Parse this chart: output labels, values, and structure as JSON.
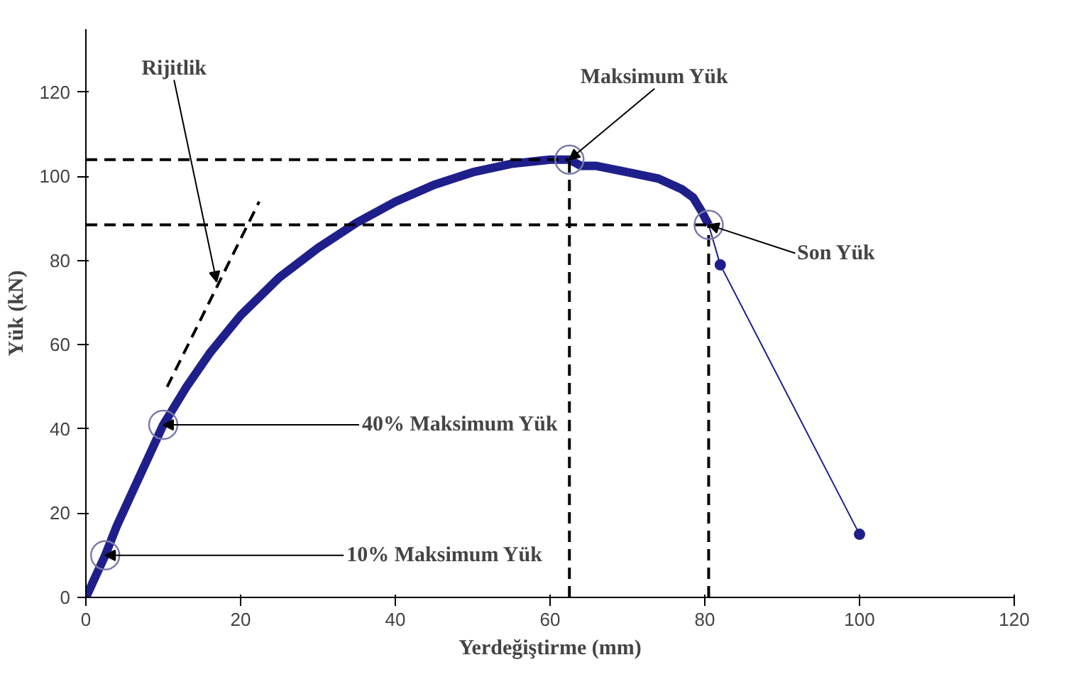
{
  "chart_data": {
    "type": "line",
    "xlabel": "Yerdeğiştirme (mm)",
    "ylabel": "Yük (kN)",
    "xlim": [
      0,
      120
    ],
    "ylim": [
      0,
      135
    ],
    "xticks": [
      0,
      20,
      40,
      60,
      80,
      100,
      120
    ],
    "yticks": [
      0,
      20,
      40,
      60,
      80,
      100,
      120
    ],
    "grid": false,
    "series": [
      {
        "color": "#1f1f8c",
        "x": [
          0,
          0.5,
          1,
          2,
          2.5,
          4,
          6,
          8,
          10,
          13,
          16,
          20,
          25,
          30,
          35,
          40,
          45,
          50,
          55,
          60,
          62.5,
          64,
          66,
          70,
          74,
          77,
          78.5,
          79.5,
          80.5
        ],
        "values": [
          0,
          2,
          4,
          8,
          10,
          17,
          25,
          33,
          41,
          50,
          58,
          67,
          76,
          83,
          89,
          94,
          98,
          101,
          103,
          104,
          104,
          102.5,
          102.5,
          101,
          99.5,
          97,
          95,
          92,
          88.5
        ],
        "marker": "none",
        "line_style": "solid"
      },
      {
        "color": "#1f1f8c",
        "x": [
          80.5,
          82,
          100
        ],
        "values": [
          88.5,
          79,
          15
        ],
        "marker": "circle",
        "line_style": "solid"
      },
      {
        "color": "#000000",
        "x": [
          0,
          62.5
        ],
        "values": [
          104,
          104
        ],
        "marker": "none",
        "line_style": "dashed"
      },
      {
        "color": "#000000",
        "x": [
          0,
          80.5
        ],
        "values": [
          88.5,
          88.5
        ],
        "marker": "none",
        "line_style": "dashed"
      },
      {
        "color": "#000000",
        "x": [
          62.5,
          62.5
        ],
        "values": [
          0,
          104
        ],
        "marker": "none",
        "line_style": "dashed"
      },
      {
        "color": "#000000",
        "x": [
          80.5,
          80.5
        ],
        "values": [
          0,
          88.5
        ],
        "marker": "none",
        "line_style": "dashed"
      },
      {
        "color": "#000000",
        "x": [
          10.5,
          22.4
        ],
        "values": [
          50,
          94
        ],
        "marker": "none",
        "line_style": "dashed"
      }
    ],
    "annotations": [
      {
        "text": "Rijitlik",
        "x": 16.9,
        "y": 75
      },
      {
        "text": "Maksimum Yük",
        "x": 62.5,
        "y": 104
      },
      {
        "text": "Son Yük",
        "x": 80.5,
        "y": 88.5
      },
      {
        "text": "40% Maksimum Yük",
        "x": 10,
        "y": 41
      },
      {
        "text": "10% Maksimum Yük",
        "x": 2.5,
        "y": 10
      }
    ]
  }
}
